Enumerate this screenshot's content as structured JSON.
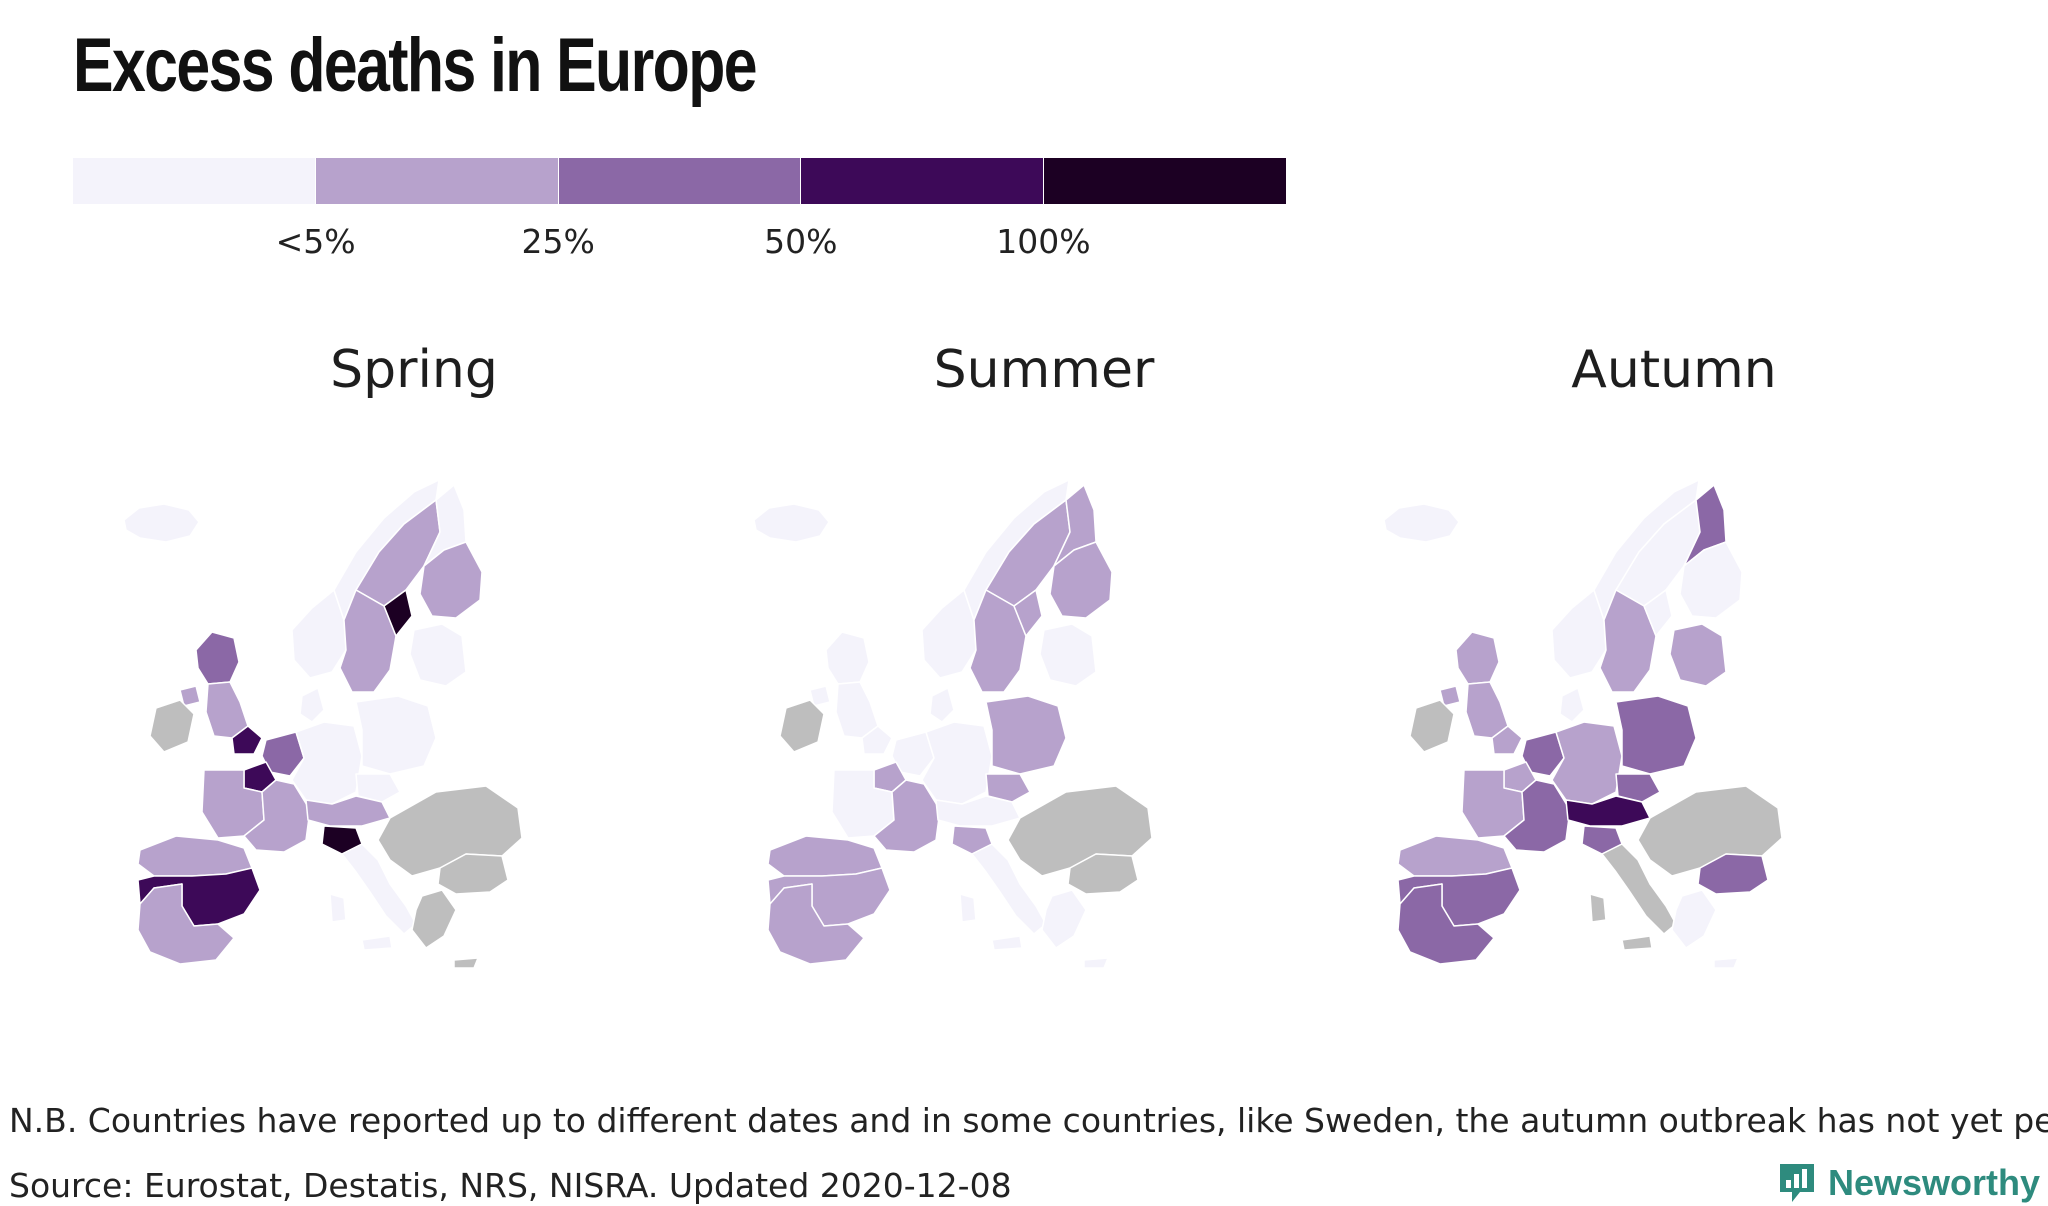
{
  "title": "Excess deaths in Europe",
  "legend": {
    "colors": [
      "#f4f3fb",
      "#b7a2cc",
      "#8b68a6",
      "#3d0958",
      "#1c0023"
    ],
    "labels": [
      "<5%",
      "25%",
      "50%",
      "100%"
    ],
    "no_data_color": "#bebebe"
  },
  "maps": [
    {
      "title": "Spring",
      "regions": {
        "iceland": 0,
        "norway_south": 0,
        "norway_north": 0,
        "sweden_north": 1,
        "sweden_mid": 1,
        "stockholm": 4,
        "finland_south": 1,
        "finland_north": 0,
        "baltics": 0,
        "scotland": 2,
        "england_north": 1,
        "london": 3,
        "northern_ireland": 1,
        "ireland": -1,
        "denmark": 0,
        "benelux": 2,
        "paris": 3,
        "france_west": 1,
        "france_south": 1,
        "germany": 0,
        "poland": 0,
        "czechia": 0,
        "switzerland_austria": 1,
        "lombardy": 4,
        "italy_south": 0,
        "iberia_north": 1,
        "madrid": 4,
        "iberia_centre": 3,
        "iberia_south": 1,
        "southeast_balkans": -1,
        "greece": -1,
        "romania_bulgaria": -1
      }
    },
    {
      "title": "Summer",
      "regions": {
        "iceland": 0,
        "norway_south": 0,
        "norway_north": 0,
        "sweden_north": 1,
        "sweden_mid": 1,
        "stockholm": 1,
        "finland_south": 1,
        "finland_north": 1,
        "baltics": 0,
        "scotland": 0,
        "england_north": 0,
        "london": 0,
        "northern_ireland": 0,
        "ireland": -1,
        "denmark": 0,
        "benelux": 0,
        "paris": 1,
        "france_west": 0,
        "france_south": 1,
        "germany": 0,
        "poland": 1,
        "czechia": 1,
        "switzerland_austria": 0,
        "lombardy": 1,
        "italy_south": 0,
        "iberia_north": 1,
        "madrid": 1,
        "iberia_centre": 1,
        "iberia_south": 1,
        "southeast_balkans": -1,
        "greece": 0,
        "romania_bulgaria": -1
      }
    },
    {
      "title": "Autumn",
      "regions": {
        "iceland": 0,
        "norway_south": 0,
        "norway_north": 0,
        "sweden_north": 0,
        "sweden_mid": 1,
        "stockholm": 0,
        "finland_south": 0,
        "finland_north": 2,
        "baltics": 1,
        "scotland": 1,
        "england_north": 1,
        "london": 1,
        "northern_ireland": 1,
        "ireland": -1,
        "denmark": 0,
        "benelux": 2,
        "paris": 1,
        "france_west": 1,
        "france_south": 2,
        "germany": 1,
        "poland": 2,
        "czechia": 2,
        "switzerland_austria": 3,
        "lombardy": 2,
        "italy_south": -1,
        "iberia_north": 1,
        "madrid": 3,
        "iberia_centre": 2,
        "iberia_south": 2,
        "southeast_balkans": -1,
        "greece": 0,
        "romania_bulgaria": 2
      }
    }
  ],
  "note": "N.B. Countries have reported up to different dates and in some countries, like Sweden, the autumn outbreak has not yet peaked.",
  "source": "Source: Eurostat, Destatis, NRS, NISRA. Updated 2020-12-08",
  "brand": {
    "name": "Newsworthy",
    "color": "#2e8b7e"
  }
}
